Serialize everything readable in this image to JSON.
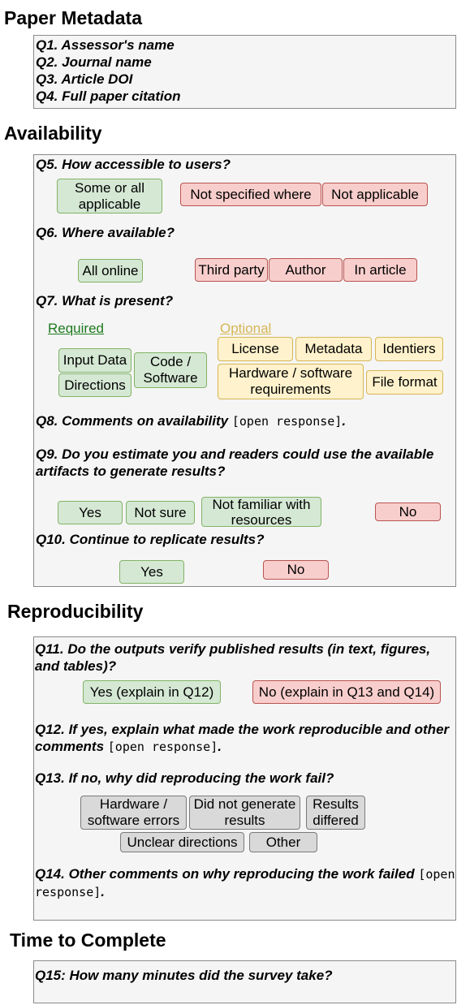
{
  "sections": {
    "metadata": {
      "title": "Paper Metadata",
      "items": [
        "Q1. Assessor's name",
        "Q2. Journal name",
        "Q3. Article DOI",
        "Q4. Full paper citation"
      ]
    },
    "availability": {
      "title": "Availability",
      "q5": "Q5. How accessible to users?",
      "q5_options": [
        "Some or all applicable",
        "Not specified where",
        "Not applicable"
      ],
      "q6": "Q6. Where available?",
      "q6_options": [
        "All online",
        "Third party",
        "Author",
        "In article"
      ],
      "q7": "Q7. What is present?",
      "q7_required_label": "Required",
      "q7_optional_label": "Optional",
      "q7_required": [
        "Input Data",
        "Directions",
        "Code / Software"
      ],
      "q7_optional": [
        "License",
        "Metadata",
        "Identiers",
        "Hardware / software requirements",
        "File format"
      ],
      "q8": "Q8. Comments on availability",
      "q9": "Q9. Do you estimate you and readers could use the available artifacts to generate results?",
      "q9_options": [
        "Yes",
        "Not sure",
        "Not familiar with resources",
        "No"
      ],
      "q10": "Q10. Continue to replicate results?",
      "q10_options": [
        "Yes",
        "No"
      ]
    },
    "reproducibility": {
      "title": "Reproducibility",
      "q11": "Q11. Do the outputs verify published results (in text, figures, and tables)?",
      "q11_options": [
        "Yes (explain in Q12)",
        "No (explain in Q13 and Q14)"
      ],
      "q12": "Q12. If yes, explain what made the work reproducible and other comments",
      "q13": "Q13. If no, why did reproducing the work fail?",
      "q13_options": [
        "Hardware / software errors",
        "Did not generate results",
        "Results differed",
        "Unclear directions",
        "Other"
      ],
      "q14": "Q14. Other comments on why reproducing the work failed"
    },
    "time": {
      "title": "Time to Complete",
      "q15": "Q15: How many minutes did the survey take?"
    }
  },
  "open_response": "[open response]",
  "period": ".",
  "colors": {
    "green_fill": "#d5e8d4",
    "green_border": "#82b366",
    "red_fill": "#f8cecc",
    "red_border": "#b85450",
    "yellow_fill": "#fff2cc",
    "yellow_border": "#d6b656",
    "grey_fill": "#d9d9d9",
    "grey_border": "#7a7a7a",
    "panel_fill": "#f5f5f5"
  }
}
